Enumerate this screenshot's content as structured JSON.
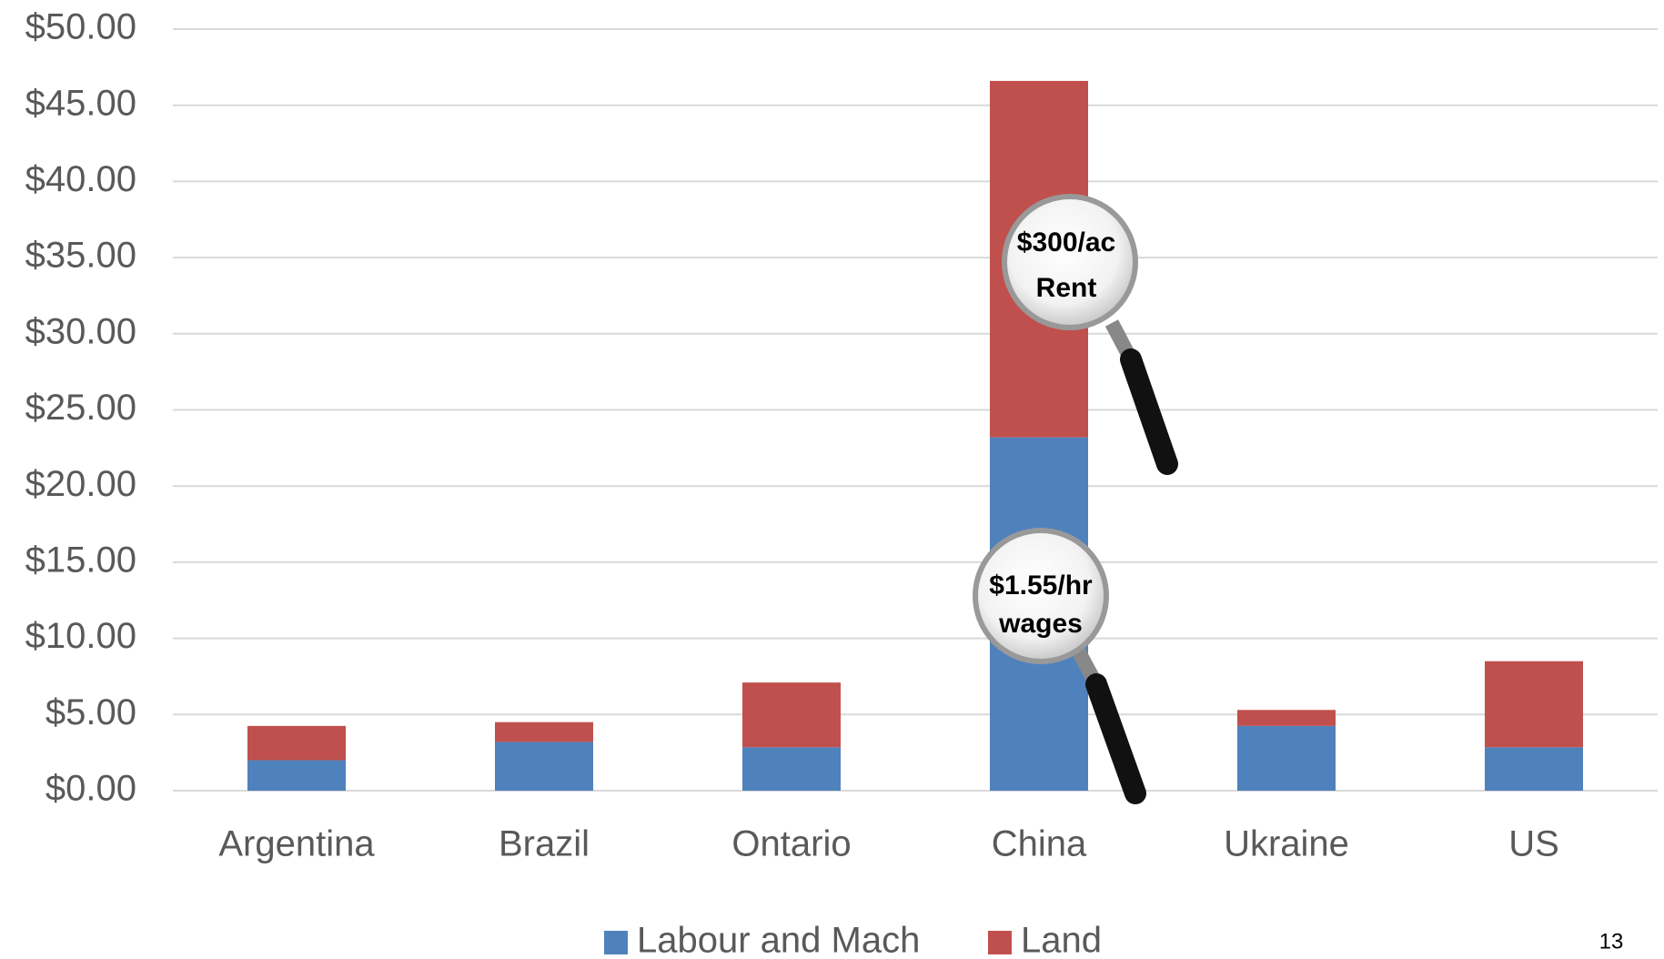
{
  "chart_data": {
    "type": "stacked_bar",
    "categories": [
      "Argentina",
      "Brazil",
      "Ontario",
      "China",
      "Ukraine",
      "US"
    ],
    "series": [
      {
        "name": "Labour and Mach",
        "color": "#4f81bd",
        "values": [
          2.0,
          3.2,
          2.85,
          23.2,
          4.25,
          2.85
        ]
      },
      {
        "name": "Land",
        "color": "#c0504d",
        "values": [
          2.25,
          1.3,
          4.25,
          23.4,
          1.05,
          5.65
        ]
      }
    ],
    "ylim": [
      0,
      50
    ],
    "yticks": [
      {
        "value": 0,
        "label": "$0.00"
      },
      {
        "value": 5,
        "label": "$5.00"
      },
      {
        "value": 10,
        "label": "$10.00"
      },
      {
        "value": 15,
        "label": "$15.00"
      },
      {
        "value": 20,
        "label": "$20.00"
      },
      {
        "value": 25,
        "label": "$25.00"
      },
      {
        "value": 30,
        "label": "$30.00"
      },
      {
        "value": 35,
        "label": "$35.00"
      },
      {
        "value": 40,
        "label": "$40.00"
      },
      {
        "value": 45,
        "label": "$45.00"
      },
      {
        "value": 50,
        "label": "$50.00"
      }
    ],
    "grid": true,
    "legend": "bottom",
    "annotations": [
      [
        "$300/ac",
        "Rent"
      ],
      [
        "$1.55/hr",
        "wages"
      ]
    ],
    "page_number": "13"
  }
}
